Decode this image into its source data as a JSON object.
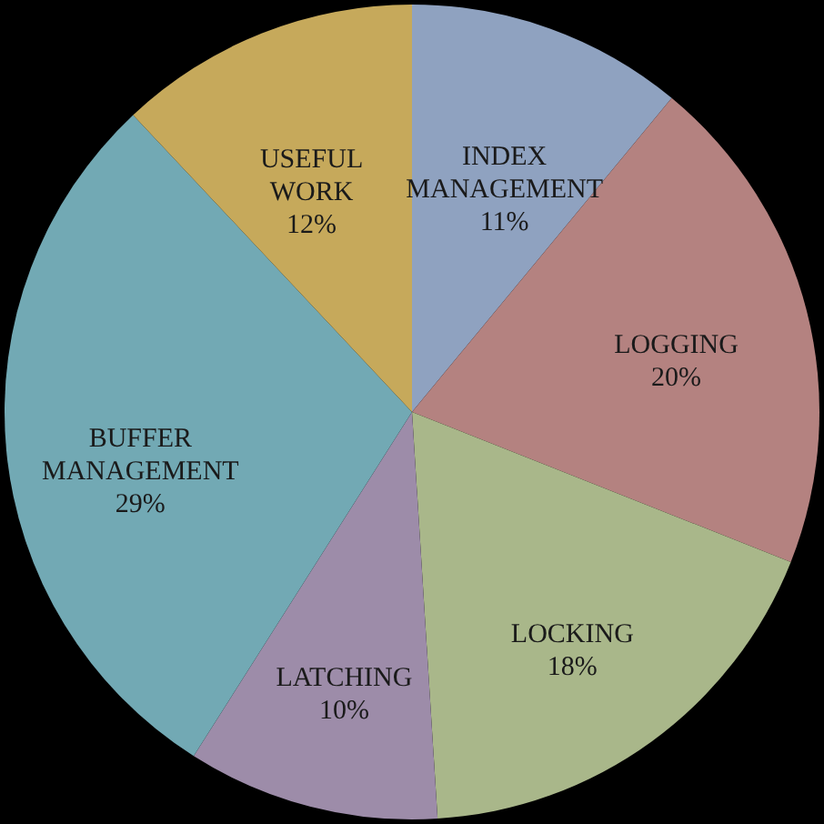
{
  "chart_data": {
    "type": "pie",
    "categories": [
      "INDEX MANAGEMENT",
      "LOGGING",
      "LOCKING",
      "LATCHING",
      "BUFFER MANAGEMENT",
      "USEFUL WORK"
    ],
    "values": [
      11,
      20,
      18,
      10,
      29,
      12
    ],
    "value_labels": [
      "11%",
      "20%",
      "18%",
      "10%",
      "29%",
      "12%"
    ],
    "colors": [
      "#8fa2c0",
      "#b48280",
      "#a9b78a",
      "#9d8ca9",
      "#72a9b4",
      "#c6a95b"
    ]
  }
}
